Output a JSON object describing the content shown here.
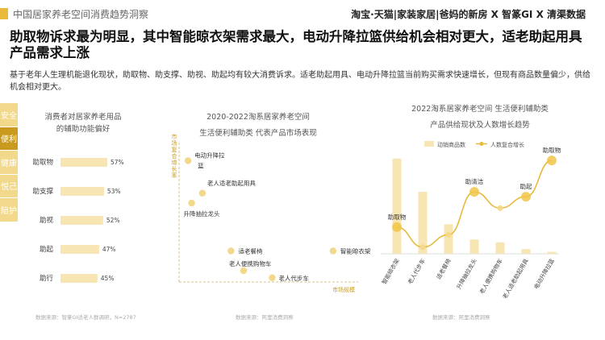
{
  "header": {
    "title": "中国居家养老空间消费趋势洞察",
    "brand": "淘宝·天猫|家装家居|爸妈的新房 X 智篆GI X 清渠数据"
  },
  "headline": "助取物诉求最为明显，其中智能晾衣架需求最大，电动升降拉篮供给机会相对更大，适老助起用具产品需求上涨",
  "description": "基于老年人生理机能退化现状，助取物、助支撑、助视、助起均有较大消费诉求。适老助起用具、电动升降拉篮当前购买需求快速增长，但现有商品数量偏少，供给机会相对更大。",
  "side_tabs": [
    {
      "label": "安全",
      "active": false
    },
    {
      "label": "便利",
      "active": true
    },
    {
      "label": "健康",
      "active": false
    },
    {
      "label": "悦己",
      "active": false
    },
    {
      "label": "陪护",
      "active": false
    }
  ],
  "colors": {
    "accent": "#e8b93a",
    "bar": "#f7e6b3",
    "tab_inactive": "#f2d88a",
    "tab_active": "#c99a1e"
  },
  "sources": {
    "chart1": "数据来源：智篆GI适老人群调研，N=2787",
    "chart2": "数据来源：阿里消费洞察",
    "chart3": "数据来源：阿里消费洞察"
  },
  "chart_data": [
    {
      "type": "bar",
      "orientation": "horizontal",
      "title": "消费者对居家养老用品的辅助功能偏好",
      "categories": [
        "助取物",
        "助支撑",
        "助视",
        "助起",
        "助行"
      ],
      "values": [
        57,
        53,
        52,
        47,
        45
      ],
      "value_labels": [
        "57%",
        "53%",
        "52%",
        "47%",
        "45%"
      ],
      "xlim": [
        0,
        100
      ]
    },
    {
      "type": "scatter",
      "title": "2020-2022淘系居家养老空间生活便利辅助类 代表产品市场表现",
      "xlabel": "市场规模",
      "ylabel": "市场复合增长率",
      "points": [
        {
          "label": "电动升降拉篮",
          "x": 0.5,
          "y": 8.6
        },
        {
          "label": "老人适老助起用具",
          "x": 1.3,
          "y": 6.3
        },
        {
          "label": "升降抽拉龙头",
          "x": 0.7,
          "y": 5.6
        },
        {
          "label": "适老餐椅",
          "x": 2.9,
          "y": 2.2
        },
        {
          "label": "智能晾衣架",
          "x": 8.6,
          "y": 2.2
        },
        {
          "label": "老人便携购物车",
          "x": 3.6,
          "y": 0.8
        },
        {
          "label": "老人代步车",
          "x": 5.2,
          "y": 0.3
        }
      ],
      "xlim": [
        0,
        10
      ],
      "ylim": [
        0,
        10
      ]
    },
    {
      "type": "bar",
      "title": "2022淘系居家养老空间 生活便利辅助类产品供给现状及人数增长趋势",
      "categories": [
        "智能晾衣架",
        "老人代步车",
        "适老餐椅",
        "升降抽拉龙头",
        "老人便携购物车",
        "老人适老助起用具",
        "电动升降拉篮"
      ],
      "series": [
        {
          "name": "动销商品数",
          "type": "bar",
          "values": [
            100,
            65,
            31,
            15,
            12,
            5,
            2
          ]
        },
        {
          "name": "人数复合增长",
          "type": "line",
          "values": [
            28,
            7,
            20,
            65,
            48,
            60,
            98
          ]
        }
      ],
      "point_labels": [
        "助取物",
        "",
        "",
        "助清洁",
        "",
        "助起",
        "助取物"
      ],
      "ylim": [
        0,
        110
      ]
    }
  ]
}
